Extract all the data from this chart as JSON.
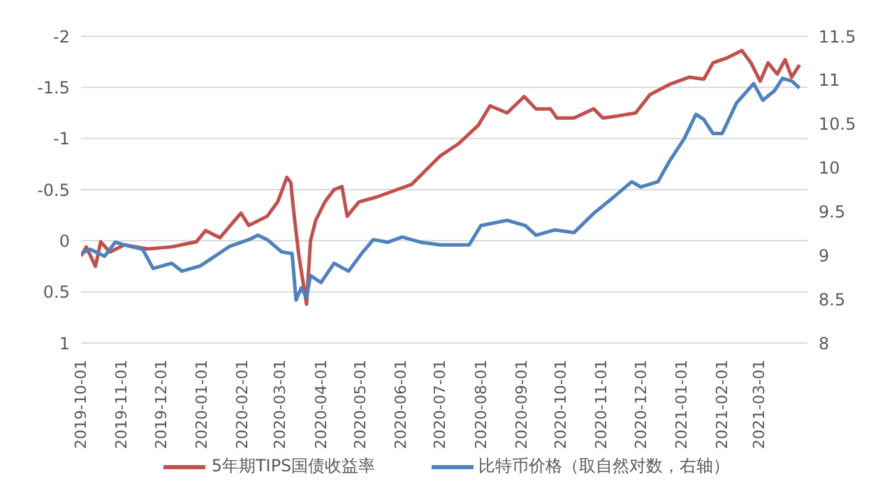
{
  "chart_data": {
    "type": "line",
    "xlim": [
      "2019-10-01",
      "2021-04-07"
    ],
    "xticks": [
      "2019-10-01",
      "2019-11-01",
      "2019-12-01",
      "2020-01-01",
      "2020-02-01",
      "2020-03-01",
      "2020-04-01",
      "2020-05-01",
      "2020-06-01",
      "2020-07-01",
      "2020-08-01",
      "2020-09-01",
      "2020-10-01",
      "2020-11-01",
      "2020-12-01",
      "2021-01-01",
      "2021-02-01",
      "2021-03-01"
    ],
    "ylim": [
      1,
      -2
    ],
    "yticks": [
      1,
      0.5,
      0,
      -0.5,
      -1,
      -1.5,
      -2
    ],
    "y2lim": [
      8,
      11.5
    ],
    "y2ticks": [
      8,
      8.5,
      9,
      9.5,
      10,
      10.5,
      11,
      11.5
    ],
    "grid": "y",
    "legend": "bottom",
    "marker": "none",
    "line_style": "solid",
    "series": [
      {
        "name": "5年期TIPS国债收益率",
        "color": "#c0504d",
        "x": [
          "2019-10-01",
          "2019-10-05",
          "2019-10-12",
          "2019-10-16",
          "2019-10-23",
          "2019-11-03",
          "2019-11-21",
          "2019-12-09",
          "2019-12-28",
          "2020-01-04",
          "2020-01-15",
          "2020-01-31",
          "2020-02-06",
          "2020-02-20",
          "2020-02-28",
          "2020-03-06",
          "2020-03-09",
          "2020-03-11",
          "2020-03-15",
          "2020-03-21",
          "2020-03-24",
          "2020-03-28",
          "2020-04-04",
          "2020-04-11",
          "2020-04-17",
          "2020-04-21",
          "2020-04-30",
          "2020-05-14",
          "2020-05-29",
          "2020-06-09",
          "2020-07-01",
          "2020-07-15",
          "2020-07-30",
          "2020-08-08",
          "2020-08-21",
          "2020-09-03",
          "2020-09-12",
          "2020-09-23",
          "2020-09-28",
          "2020-10-11",
          "2020-10-26",
          "2020-11-02",
          "2020-11-13",
          "2020-11-27",
          "2020-12-08",
          "2020-12-23",
          "2021-01-07",
          "2021-01-18",
          "2021-01-25",
          "2021-02-05",
          "2021-02-16",
          "2021-02-23",
          "2021-03-02",
          "2021-03-08",
          "2021-03-15",
          "2021-03-21",
          "2021-03-26",
          "2021-04-01"
        ],
        "values": [
          0.15,
          0.06,
          0.25,
          0.01,
          0.11,
          0.04,
          0.08,
          0.06,
          0.01,
          -0.1,
          -0.03,
          -0.27,
          -0.15,
          -0.24,
          -0.38,
          -0.62,
          -0.57,
          -0.31,
          0.13,
          0.62,
          0,
          -0.2,
          -0.38,
          -0.5,
          -0.53,
          -0.24,
          -0.38,
          -0.43,
          -0.5,
          -0.55,
          -0.83,
          -0.95,
          -1.13,
          -1.32,
          -1.25,
          -1.41,
          -1.29,
          -1.29,
          -1.2,
          -1.2,
          -1.29,
          -1.2,
          -1.22,
          -1.25,
          -1.43,
          -1.53,
          -1.6,
          -1.58,
          -1.74,
          -1.79,
          -1.86,
          -1.74,
          -1.56,
          -1.74,
          -1.63,
          -1.77,
          -1.6,
          -1.72
        ]
      },
      {
        "name": "比特币价格（取自然对数，右轴）",
        "color": "#4f81bd",
        "axis": "y2",
        "x": [
          "2019-10-01",
          "2019-10-08",
          "2019-10-19",
          "2019-10-27",
          "2019-11-03",
          "2019-11-17",
          "2019-11-25",
          "2019-12-09",
          "2019-12-17",
          "2019-12-31",
          "2020-01-08",
          "2020-01-22",
          "2020-02-06",
          "2020-02-13",
          "2020-02-20",
          "2020-03-02",
          "2020-03-10",
          "2020-03-13",
          "2020-03-17",
          "2020-03-21",
          "2020-03-24",
          "2020-04-01",
          "2020-04-11",
          "2020-04-22",
          "2020-05-03",
          "2020-05-11",
          "2020-05-22",
          "2020-06-02",
          "2020-06-09",
          "2020-06-16",
          "2020-07-01",
          "2020-07-23",
          "2020-08-01",
          "2020-08-21",
          "2020-09-04",
          "2020-09-12",
          "2020-09-26",
          "2020-10-11",
          "2020-10-26",
          "2020-11-09",
          "2020-11-24",
          "2020-12-01",
          "2020-12-14",
          "2020-12-23",
          "2021-01-03",
          "2021-01-12",
          "2021-01-18",
          "2021-01-25",
          "2021-02-01",
          "2021-02-12",
          "2021-02-25",
          "2021-03-04",
          "2021-03-13",
          "2021-03-19",
          "2021-03-26",
          "2021-04-01"
        ],
        "values": [
          9.02,
          9.07,
          8.99,
          9.15,
          9.12,
          9.07,
          8.85,
          8.91,
          8.82,
          8.88,
          8.96,
          9.1,
          9.18,
          9.23,
          9.18,
          9.04,
          9.02,
          8.49,
          8.63,
          8.52,
          8.77,
          8.69,
          8.91,
          8.82,
          9.04,
          9.18,
          9.15,
          9.21,
          9.18,
          9.15,
          9.12,
          9.12,
          9.34,
          9.4,
          9.34,
          9.23,
          9.29,
          9.26,
          9.48,
          9.65,
          9.84,
          9.78,
          9.84,
          10.08,
          10.33,
          10.61,
          10.55,
          10.39,
          10.39,
          10.74,
          10.96,
          10.77,
          10.88,
          11.02,
          10.99,
          10.91
        ]
      }
    ]
  }
}
